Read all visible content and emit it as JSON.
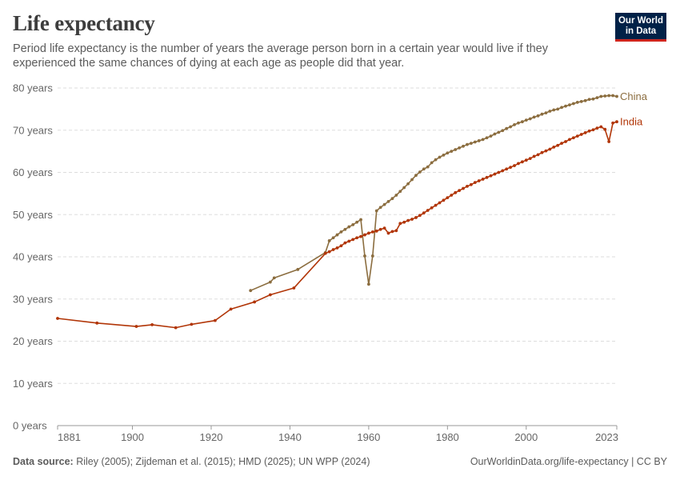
{
  "header": {
    "title": "Life expectancy",
    "subtitle": "Period life expectancy is the number of years the average person born in a certain year would live if they experienced the same chances of dying at each age as people did that year.",
    "logo_line1": "Our World",
    "logo_line2": "in Data"
  },
  "footer": {
    "source_label": "Data source:",
    "source_text": "Riley (2005); Zijdeman et al. (2015); HMD (2025); UN WPP (2024)",
    "url": "OurWorldinData.org/life-expectancy | CC BY"
  },
  "chart_data": {
    "type": "line",
    "title": "Life expectancy",
    "ylabel": "",
    "xlabel": "",
    "xlim": [
      1881,
      2023
    ],
    "ylim": [
      0,
      80
    ],
    "x_ticks": [
      "1881",
      "1900",
      "1920",
      "1940",
      "1960",
      "1980",
      "2000",
      "2023"
    ],
    "y_ticks": [
      "0 years",
      "10 years",
      "20 years",
      "30 years",
      "40 years",
      "50 years",
      "60 years",
      "70 years",
      "80 years"
    ],
    "grid": "horizontal dashed",
    "legend": "labels at line ends (right)",
    "series": [
      {
        "name": "China",
        "color": "#8b6d3f",
        "points": [
          [
            1930,
            32.0
          ],
          [
            1935,
            34.0
          ],
          [
            1936,
            35.0
          ],
          [
            1942,
            37.0
          ],
          [
            1949,
            41.0
          ],
          [
            1950,
            43.8
          ],
          [
            1951,
            44.5
          ],
          [
            1952,
            45.2
          ],
          [
            1953,
            45.9
          ],
          [
            1954,
            46.5
          ],
          [
            1955,
            47.1
          ],
          [
            1956,
            47.6
          ],
          [
            1957,
            48.2
          ],
          [
            1958,
            48.8
          ],
          [
            1959,
            40.2
          ],
          [
            1960,
            33.5
          ],
          [
            1961,
            40.2
          ],
          [
            1962,
            50.9
          ],
          [
            1963,
            51.7
          ],
          [
            1964,
            52.4
          ],
          [
            1965,
            53.1
          ],
          [
            1966,
            53.8
          ],
          [
            1967,
            54.6
          ],
          [
            1968,
            55.5
          ],
          [
            1969,
            56.4
          ],
          [
            1970,
            57.3
          ],
          [
            1971,
            58.3
          ],
          [
            1972,
            59.3
          ],
          [
            1973,
            60.1
          ],
          [
            1974,
            60.8
          ],
          [
            1975,
            61.3
          ],
          [
            1976,
            62.3
          ],
          [
            1977,
            63.0
          ],
          [
            1978,
            63.6
          ],
          [
            1979,
            64.1
          ],
          [
            1980,
            64.6
          ],
          [
            1981,
            65.0
          ],
          [
            1982,
            65.4
          ],
          [
            1983,
            65.8
          ],
          [
            1984,
            66.2
          ],
          [
            1985,
            66.6
          ],
          [
            1986,
            66.9
          ],
          [
            1987,
            67.2
          ],
          [
            1988,
            67.5
          ],
          [
            1989,
            67.8
          ],
          [
            1990,
            68.2
          ],
          [
            1991,
            68.6
          ],
          [
            1992,
            69.1
          ],
          [
            1993,
            69.5
          ],
          [
            1994,
            69.9
          ],
          [
            1995,
            70.4
          ],
          [
            1996,
            70.8
          ],
          [
            1997,
            71.3
          ],
          [
            1998,
            71.7
          ],
          [
            1999,
            72.0
          ],
          [
            2000,
            72.4
          ],
          [
            2001,
            72.7
          ],
          [
            2002,
            73.1
          ],
          [
            2003,
            73.4
          ],
          [
            2004,
            73.8
          ],
          [
            2005,
            74.1
          ],
          [
            2006,
            74.5
          ],
          [
            2007,
            74.8
          ],
          [
            2008,
            75.0
          ],
          [
            2009,
            75.4
          ],
          [
            2010,
            75.7
          ],
          [
            2011,
            76.0
          ],
          [
            2012,
            76.3
          ],
          [
            2013,
            76.6
          ],
          [
            2014,
            76.8
          ],
          [
            2015,
            77.0
          ],
          [
            2016,
            77.3
          ],
          [
            2017,
            77.4
          ],
          [
            2018,
            77.7
          ],
          [
            2019,
            78.0
          ],
          [
            2020,
            78.1
          ],
          [
            2021,
            78.2
          ],
          [
            2022,
            78.2
          ],
          [
            2023,
            78.0
          ]
        ]
      },
      {
        "name": "India",
        "color": "#b13507",
        "points": [
          [
            1881,
            25.4
          ],
          [
            1891,
            24.3
          ],
          [
            1901,
            23.5
          ],
          [
            1905,
            23.9
          ],
          [
            1911,
            23.2
          ],
          [
            1915,
            24.0
          ],
          [
            1921,
            24.9
          ],
          [
            1925,
            27.6
          ],
          [
            1931,
            29.3
          ],
          [
            1935,
            31.0
          ],
          [
            1941,
            32.6
          ],
          [
            1949,
            40.8
          ],
          [
            1950,
            41.2
          ],
          [
            1951,
            41.7
          ],
          [
            1952,
            42.1
          ],
          [
            1953,
            42.6
          ],
          [
            1954,
            43.3
          ],
          [
            1955,
            43.7
          ],
          [
            1956,
            44.1
          ],
          [
            1957,
            44.5
          ],
          [
            1958,
            44.8
          ],
          [
            1959,
            45.2
          ],
          [
            1960,
            45.6
          ],
          [
            1961,
            45.9
          ],
          [
            1962,
            46.1
          ],
          [
            1963,
            46.5
          ],
          [
            1964,
            46.8
          ],
          [
            1965,
            45.6
          ],
          [
            1966,
            46.0
          ],
          [
            1967,
            46.2
          ],
          [
            1968,
            47.9
          ],
          [
            1969,
            48.2
          ],
          [
            1970,
            48.6
          ],
          [
            1971,
            48.9
          ],
          [
            1972,
            49.3
          ],
          [
            1973,
            49.8
          ],
          [
            1974,
            50.4
          ],
          [
            1975,
            51.0
          ],
          [
            1976,
            51.6
          ],
          [
            1977,
            52.2
          ],
          [
            1978,
            52.8
          ],
          [
            1979,
            53.4
          ],
          [
            1980,
            54.0
          ],
          [
            1981,
            54.6
          ],
          [
            1982,
            55.2
          ],
          [
            1983,
            55.7
          ],
          [
            1984,
            56.2
          ],
          [
            1985,
            56.7
          ],
          [
            1986,
            57.1
          ],
          [
            1987,
            57.6
          ],
          [
            1988,
            58.0
          ],
          [
            1989,
            58.4
          ],
          [
            1990,
            58.8
          ],
          [
            1991,
            59.2
          ],
          [
            1992,
            59.6
          ],
          [
            1993,
            60.0
          ],
          [
            1994,
            60.4
          ],
          [
            1995,
            60.8
          ],
          [
            1996,
            61.2
          ],
          [
            1997,
            61.6
          ],
          [
            1998,
            62.1
          ],
          [
            1999,
            62.5
          ],
          [
            2000,
            62.9
          ],
          [
            2001,
            63.3
          ],
          [
            2002,
            63.8
          ],
          [
            2003,
            64.2
          ],
          [
            2004,
            64.7
          ],
          [
            2005,
            65.1
          ],
          [
            2006,
            65.5
          ],
          [
            2007,
            66.0
          ],
          [
            2008,
            66.4
          ],
          [
            2009,
            66.9
          ],
          [
            2010,
            67.3
          ],
          [
            2011,
            67.8
          ],
          [
            2012,
            68.2
          ],
          [
            2013,
            68.6
          ],
          [
            2014,
            69.0
          ],
          [
            2015,
            69.4
          ],
          [
            2016,
            69.8
          ],
          [
            2017,
            70.1
          ],
          [
            2018,
            70.5
          ],
          [
            2019,
            70.8
          ],
          [
            2020,
            70.2
          ],
          [
            2021,
            67.3
          ],
          [
            2022,
            71.7
          ],
          [
            2023,
            72.0
          ]
        ]
      }
    ]
  }
}
